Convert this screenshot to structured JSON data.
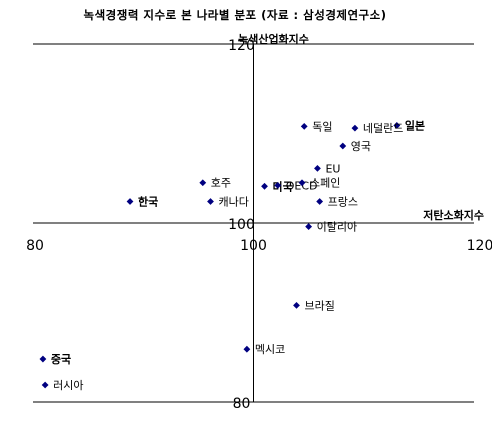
{
  "chart_data": {
    "type": "scatter",
    "title": "녹색경쟁력 지수로 본 나라별 분포 (자료 : 삼성경제연구소)",
    "xlabel": "저탄소화지수",
    "ylabel": "녹색산업화지수",
    "xlim": [
      80,
      120
    ],
    "ylim": [
      80,
      120
    ],
    "cross_at": [
      100,
      100
    ],
    "x_ticks": [
      "80",
      "100",
      "120"
    ],
    "y_ticks": [
      "80",
      "100",
      "120"
    ],
    "grid": false,
    "marker_color": "#000080",
    "points": [
      {
        "label": "일본",
        "x": 113,
        "y": 110.9,
        "bold": true
      },
      {
        "label": "독일",
        "x": 104.6,
        "y": 110.8,
        "bold": false
      },
      {
        "label": "네덜란드",
        "x": 109.2,
        "y": 110.6,
        "bold": false
      },
      {
        "label": "영국",
        "x": 108.1,
        "y": 108.6,
        "bold": false
      },
      {
        "label": "EU",
        "x": 105.8,
        "y": 106.1,
        "bold": false
      },
      {
        "label": "호주",
        "x": 95.4,
        "y": 104.5,
        "bold": false
      },
      {
        "label": "미국",
        "x": 101,
        "y": 104.1,
        "bold": true
      },
      {
        "label": "OECD",
        "x": 102.2,
        "y": 104.2,
        "bold": false
      },
      {
        "label": "스페인",
        "x": 104.4,
        "y": 104.5,
        "bold": false
      },
      {
        "label": "한국",
        "x": 88.8,
        "y": 102.4,
        "bold": true
      },
      {
        "label": "캐나다",
        "x": 96.1,
        "y": 102.4,
        "bold": false
      },
      {
        "label": "프랑스",
        "x": 106,
        "y": 102.4,
        "bold": false
      },
      {
        "label": "이탈리아",
        "x": 105,
        "y": 99.6,
        "bold": false
      },
      {
        "label": "브라질",
        "x": 103.9,
        "y": 90.8,
        "bold": false
      },
      {
        "label": "멕시코",
        "x": 99.4,
        "y": 85.9,
        "bold": false
      },
      {
        "label": "중국",
        "x": 80.9,
        "y": 84.8,
        "bold": true
      },
      {
        "label": "러시아",
        "x": 81.1,
        "y": 81.9,
        "bold": false
      }
    ]
  }
}
